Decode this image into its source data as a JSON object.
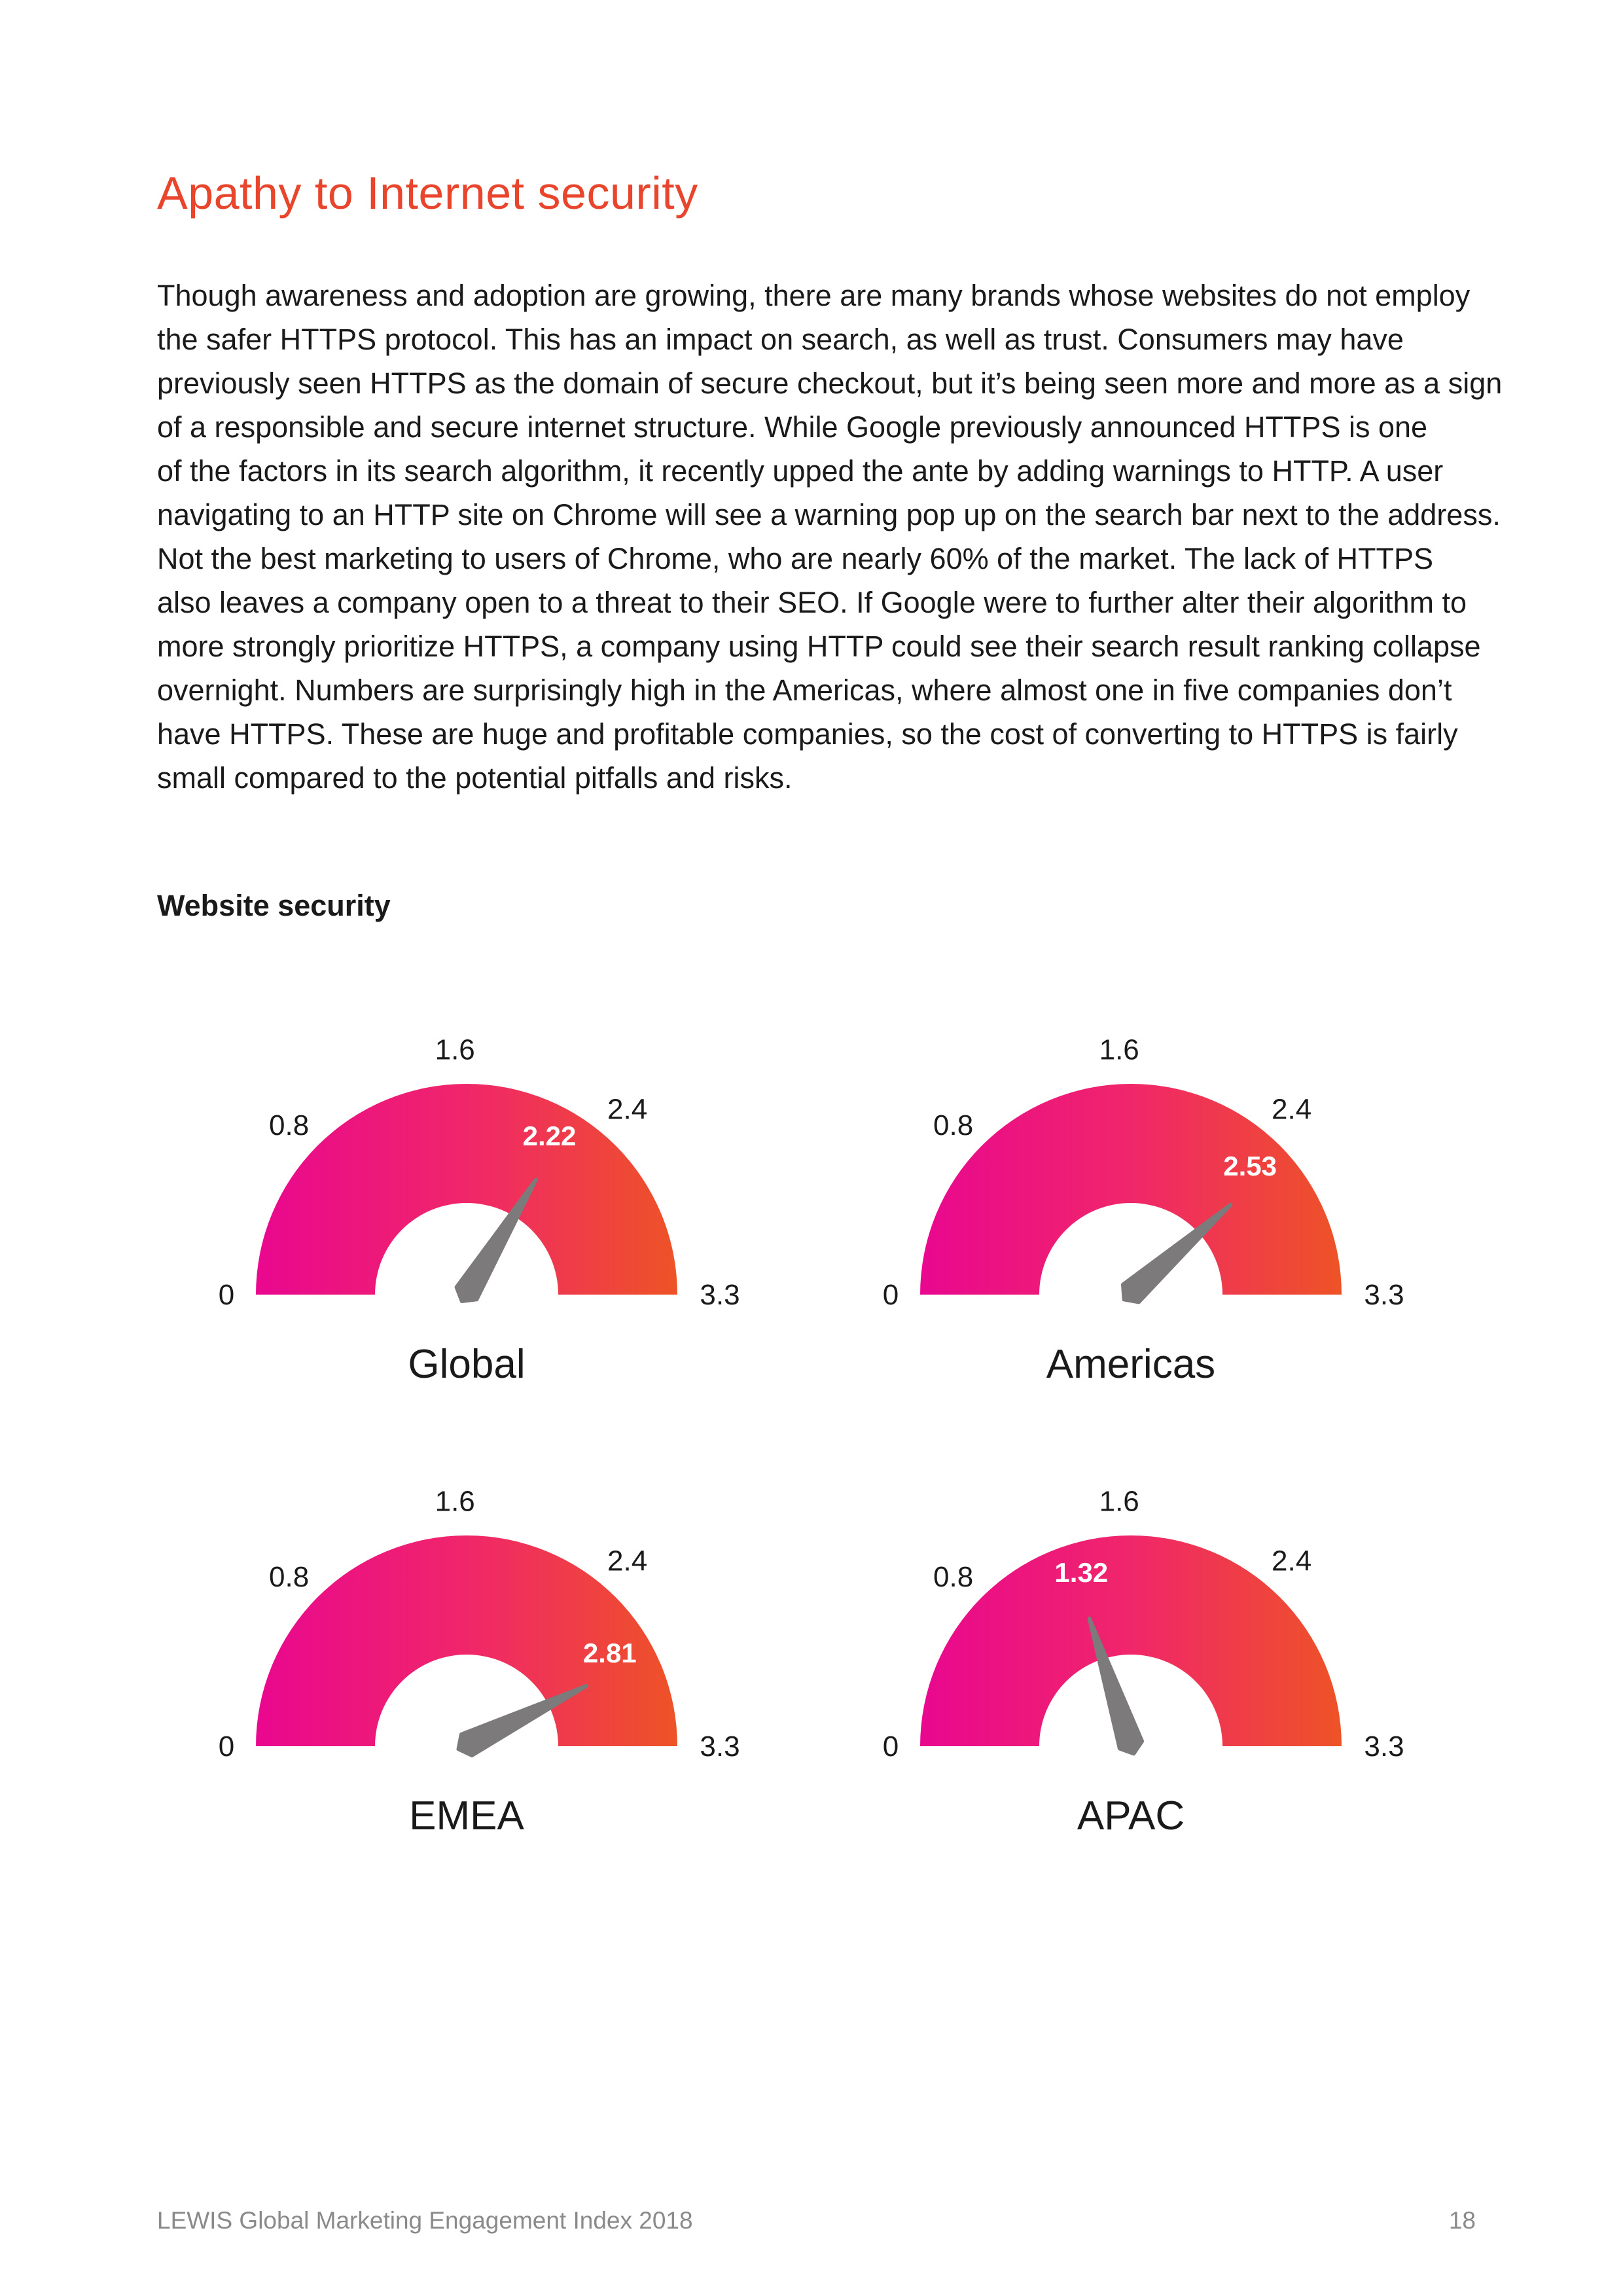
{
  "page": {
    "title": "Apathy to Internet security",
    "body_lines": [
      "Though awareness and adoption are growing, there are many brands whose websites do not employ",
      "the safer HTTPS protocol. This has an impact on search, as well as trust. Consumers may have",
      "previously seen HTTPS as the domain of secure checkout, but it’s being seen more and more as a sign",
      "of a responsible and secure internet structure. While Google previously announced HTTPS is one",
      "of the factors in its search algorithm, it recently upped the ante by adding warnings to HTTP. A user",
      "navigating to an HTTP site on Chrome will see a warning pop up on the search bar next to the address.",
      "Not the best marketing to users of Chrome, who are nearly 60% of the market. The lack of HTTPS",
      "also leaves a company open to a threat to their SEO. If Google were to further alter their algorithm to",
      "more strongly prioritize HTTPS, a company using HTTP could see their search result ranking collapse",
      "overnight. Numbers are surprisingly high in the Americas, where almost one in five companies don’t",
      "have HTTPS. These are huge and profitable companies, so the cost of converting to HTTPS is fairly",
      "small compared to the potential pitfalls and risks."
    ],
    "section_heading": "Website security",
    "footer": {
      "publication": "LEWIS Global Marketing Engagement Index 2018",
      "page_number": "18"
    }
  },
  "colors": {
    "title": "#e8452c",
    "gauge_start": "#e9078f",
    "gauge_mid": "#f0266a",
    "gauge_end": "#ee5326",
    "needle": "#7c7a7b",
    "text": "#1a1a1a",
    "footer": "#8a8a8a"
  },
  "chart_data": [
    {
      "type": "gauge",
      "title": "Global",
      "value": 2.22,
      "value_label": "2.22",
      "min": 0,
      "max": 3.3,
      "ticks": [
        {
          "value": 0,
          "label": "0"
        },
        {
          "value": 0.8,
          "label": "0.8"
        },
        {
          "value": 1.6,
          "label": "1.6"
        },
        {
          "value": 2.4,
          "label": "2.4"
        },
        {
          "value": 3.3,
          "label": "3.3"
        }
      ]
    },
    {
      "type": "gauge",
      "title": "Americas",
      "value": 2.53,
      "value_label": "2.53",
      "min": 0,
      "max": 3.3,
      "ticks": [
        {
          "value": 0,
          "label": "0"
        },
        {
          "value": 0.8,
          "label": "0.8"
        },
        {
          "value": 1.6,
          "label": "1.6"
        },
        {
          "value": 2.4,
          "label": "2.4"
        },
        {
          "value": 3.3,
          "label": "3.3"
        }
      ]
    },
    {
      "type": "gauge",
      "title": "EMEA",
      "value": 2.81,
      "value_label": "2.81",
      "min": 0,
      "max": 3.3,
      "ticks": [
        {
          "value": 0,
          "label": "0"
        },
        {
          "value": 0.8,
          "label": "0.8"
        },
        {
          "value": 1.6,
          "label": "1.6"
        },
        {
          "value": 2.4,
          "label": "2.4"
        },
        {
          "value": 3.3,
          "label": "3.3"
        }
      ]
    },
    {
      "type": "gauge",
      "title": "APAC",
      "value": 1.32,
      "value_label": "1.32",
      "min": 0,
      "max": 3.3,
      "ticks": [
        {
          "value": 0,
          "label": "0"
        },
        {
          "value": 0.8,
          "label": "0.8"
        },
        {
          "value": 1.6,
          "label": "1.6"
        },
        {
          "value": 2.4,
          "label": "2.4"
        },
        {
          "value": 3.3,
          "label": "3.3"
        }
      ]
    }
  ]
}
